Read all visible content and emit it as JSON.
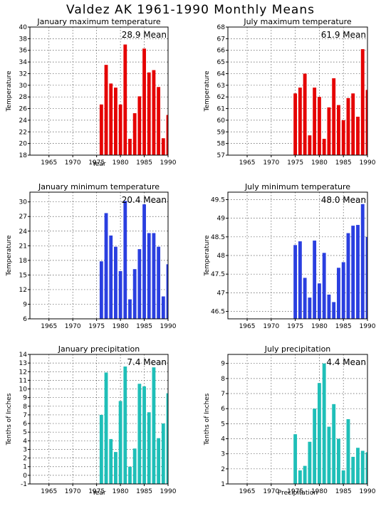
{
  "figure": {
    "title": "Valdez AK   1961-1990 Monthly Means"
  },
  "chart_data": [
    {
      "type": "bar",
      "title": "January maximum temperature",
      "xlabel": "Year",
      "ylabel": "Temperature",
      "mean_label": "28.9 Mean",
      "color": "#e50000",
      "xlim": [
        1961,
        1990
      ],
      "xticks": [
        1965,
        1970,
        1975,
        1980,
        1985,
        1990
      ],
      "ylim": [
        18,
        40
      ],
      "yticks": [
        18,
        20,
        22,
        24,
        26,
        28,
        30,
        32,
        34,
        36,
        38,
        40
      ],
      "x": [
        1976,
        1977,
        1978,
        1979,
        1980,
        1981,
        1982,
        1983,
        1984,
        1985,
        1986,
        1987,
        1988,
        1989,
        1990
      ],
      "values": [
        26.7,
        33.5,
        30.3,
        29.6,
        26.7,
        37.0,
        20.8,
        25.2,
        28.1,
        36.3,
        32.2,
        32.6,
        29.7,
        20.9,
        24.9
      ],
      "grid": true
    },
    {
      "type": "bar",
      "title": "July maximum temperature",
      "xlabel": "",
      "ylabel": "Temperature",
      "mean_label": "61.9 Mean",
      "color": "#e50000",
      "xlim": [
        1961,
        1990
      ],
      "xticks": [
        1965,
        1970,
        1975,
        1980,
        1985,
        1990
      ],
      "ylim": [
        57,
        68
      ],
      "yticks": [
        57,
        58,
        59,
        60,
        61,
        62,
        63,
        64,
        65,
        66,
        67,
        68
      ],
      "x": [
        1975,
        1976,
        1977,
        1978,
        1979,
        1980,
        1981,
        1982,
        1983,
        1984,
        1985,
        1986,
        1987,
        1988,
        1989,
        1990
      ],
      "values": [
        62.3,
        62.8,
        64.0,
        58.7,
        62.8,
        62.0,
        58.4,
        61.1,
        63.6,
        61.3,
        60.0,
        61.9,
        62.3,
        60.3,
        66.1,
        62.6
      ],
      "grid": true
    },
    {
      "type": "bar",
      "title": "January minimum temperature",
      "xlabel": "",
      "ylabel": "Temperature",
      "mean_label": "20.4 Mean",
      "color": "#2a3fe0",
      "xlim": [
        1961,
        1990
      ],
      "xticks": [
        1965,
        1970,
        1975,
        1980,
        1985,
        1990
      ],
      "ylim": [
        6,
        32
      ],
      "yticks": [
        6,
        9,
        12,
        15,
        18,
        21,
        24,
        27,
        30
      ],
      "x": [
        1976,
        1977,
        1978,
        1979,
        1980,
        1981,
        1982,
        1983,
        1984,
        1985,
        1986,
        1987,
        1988,
        1989,
        1990
      ],
      "values": [
        17.8,
        27.7,
        23.1,
        20.8,
        15.8,
        30.2,
        10.0,
        16.2,
        20.3,
        29.5,
        23.6,
        23.6,
        20.8,
        10.6,
        17.2
      ],
      "grid": true
    },
    {
      "type": "bar",
      "title": "July minimum temperature",
      "xlabel": "",
      "ylabel": "Temperature",
      "mean_label": "48.0 Mean",
      "color": "#2a3fe0",
      "xlim": [
        1961,
        1990
      ],
      "xticks": [
        1965,
        1970,
        1975,
        1980,
        1985,
        1990
      ],
      "ylim": [
        46.3,
        49.7
      ],
      "yticks": [
        46.5,
        47,
        47.5,
        48,
        48.5,
        49,
        49.5
      ],
      "x": [
        1975,
        1976,
        1977,
        1978,
        1979,
        1980,
        1981,
        1982,
        1983,
        1984,
        1985,
        1986,
        1987,
        1988,
        1989,
        1990
      ],
      "values": [
        48.28,
        48.38,
        47.4,
        46.87,
        48.4,
        47.25,
        48.07,
        46.95,
        46.75,
        47.67,
        47.82,
        48.6,
        48.8,
        48.82,
        49.38,
        48.5
      ],
      "grid": true
    },
    {
      "type": "bar",
      "title": "January precipitation",
      "xlabel": "Year",
      "ylabel": "Tenths of Inches",
      "mean_label": "7.4 Mean",
      "color": "#1fbfb8",
      "xlim": [
        1961,
        1990
      ],
      "xticks": [
        1965,
        1970,
        1975,
        1980,
        1985,
        1990
      ],
      "ylim": [
        -1,
        14
      ],
      "yticks": [
        -1,
        0,
        1,
        2,
        3,
        4,
        5,
        6,
        7,
        8,
        9,
        10,
        11,
        12,
        13,
        14
      ],
      "x": [
        1976,
        1977,
        1978,
        1979,
        1980,
        1981,
        1982,
        1983,
        1984,
        1985,
        1986,
        1987,
        1988,
        1989,
        1990
      ],
      "values": [
        7.0,
        11.9,
        4.2,
        2.7,
        8.6,
        12.6,
        1.0,
        3.1,
        10.6,
        10.3,
        7.3,
        12.5,
        4.3,
        6.0,
        9.5
      ],
      "grid": true
    },
    {
      "type": "bar",
      "title": "July precipitation",
      "xlabel": "Precipitation",
      "ylabel": "Tenths of Inches",
      "mean_label": "4.4 Mean",
      "color": "#1fbfb8",
      "xlim": [
        1961,
        1990
      ],
      "xticks": [
        1965,
        1970,
        1975,
        1980,
        1985,
        1990
      ],
      "ylim": [
        1,
        9.6
      ],
      "yticks": [
        1,
        2,
        3,
        4,
        5,
        6,
        7,
        8,
        9
      ],
      "x": [
        1975,
        1976,
        1977,
        1978,
        1979,
        1980,
        1981,
        1982,
        1983,
        1984,
        1985,
        1986,
        1987,
        1988,
        1989,
        1990
      ],
      "values": [
        4.3,
        1.9,
        2.2,
        3.8,
        6.0,
        7.7,
        9.0,
        4.8,
        6.3,
        4.0,
        1.9,
        5.3,
        2.8,
        3.4,
        3.2,
        3.1
      ],
      "grid": true
    }
  ]
}
